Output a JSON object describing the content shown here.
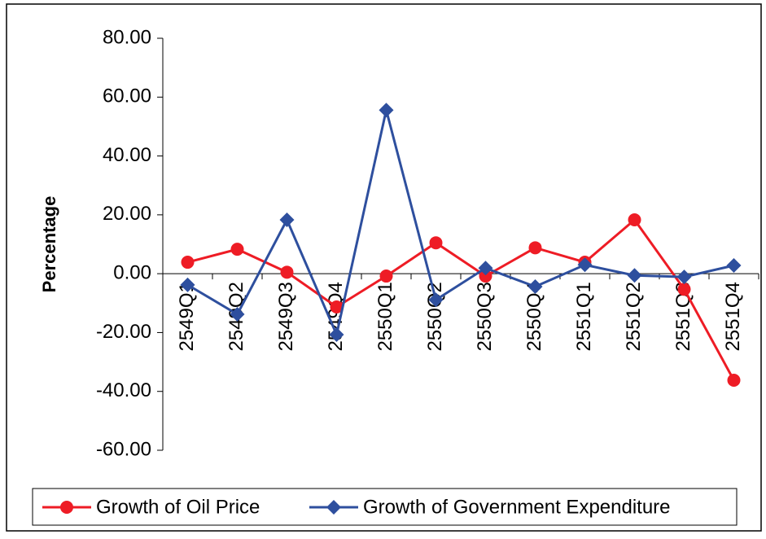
{
  "chart_data": {
    "type": "line",
    "y_label": "Percentage",
    "categories": [
      "2549Q1",
      "2549Q2",
      "2549Q3",
      "2549Q4",
      "2550Q1",
      "2550Q2",
      "2550Q3",
      "2550Q4",
      "2551Q1",
      "2551Q2",
      "2551Q3",
      "2551Q4"
    ],
    "series": [
      {
        "name": "Growth of Oil Price",
        "color": "#ee1c25",
        "marker": "circle",
        "values": [
          3.9,
          8.3,
          0.5,
          -11.3,
          -0.8,
          10.5,
          -0.8,
          8.8,
          3.9,
          18.3,
          -5.3,
          -36.2
        ]
      },
      {
        "name": "Growth of Government Expenditure",
        "color": "#2e4f9e",
        "marker": "diamond",
        "values": [
          -3.8,
          -13.8,
          18.3,
          -20.7,
          55.6,
          -8.9,
          1.9,
          -4.4,
          3.0,
          -0.6,
          -1.1,
          2.8
        ]
      }
    ],
    "ylim": [
      -60,
      80
    ],
    "yticks": [
      {
        "value": -60,
        "label": "-60.00"
      },
      {
        "value": -40,
        "label": "-40.00"
      },
      {
        "value": -20,
        "label": "-20.00"
      },
      {
        "value": 0,
        "label": "0.00"
      },
      {
        "value": 20,
        "label": "20.00"
      },
      {
        "value": 40,
        "label": "40.00"
      },
      {
        "value": 60,
        "label": "60.00"
      },
      {
        "value": 80,
        "label": "80.00"
      }
    ],
    "legend": "bottom"
  }
}
